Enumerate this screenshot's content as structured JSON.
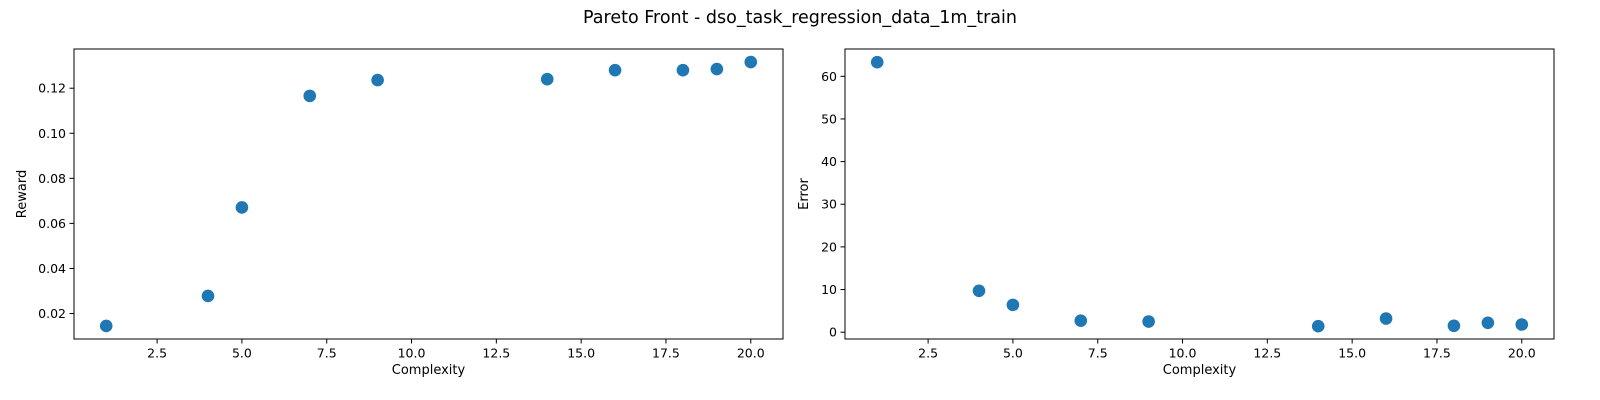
{
  "figure": {
    "suptitle": "Pareto Front - dso_task_regression_data_1m_train"
  },
  "chart_data": [
    {
      "type": "scatter",
      "title": "",
      "xlabel": "Complexity",
      "ylabel": "Reward",
      "xlim": [
        0.05,
        20.95
      ],
      "ylim": [
        0.0087,
        0.1374
      ],
      "xticks": [
        2.5,
        5.0,
        7.5,
        10.0,
        12.5,
        15.0,
        17.5,
        20.0
      ],
      "xtick_labels": [
        "2.5",
        "5.0",
        "7.5",
        "10.0",
        "12.5",
        "15.0",
        "17.5",
        "20.0"
      ],
      "yticks": [
        0.02,
        0.04,
        0.06,
        0.08,
        0.1,
        0.12
      ],
      "ytick_labels": [
        "0.02",
        "0.04",
        "0.06",
        "0.08",
        "0.10",
        "0.12"
      ],
      "grid": false,
      "color": "#1f77b4",
      "x": [
        1,
        4,
        5,
        7,
        9,
        14,
        16,
        18,
        19,
        20
      ],
      "y": [
        0.0145,
        0.0278,
        0.0671,
        0.1166,
        0.1236,
        0.124,
        0.128,
        0.128,
        0.1285,
        0.1316
      ]
    },
    {
      "type": "scatter",
      "title": "",
      "xlabel": "Complexity",
      "ylabel": "Error",
      "xlim": [
        0.05,
        20.95
      ],
      "ylim": [
        -1.6,
        66.4
      ],
      "xticks": [
        2.5,
        5.0,
        7.5,
        10.0,
        12.5,
        15.0,
        17.5,
        20.0
      ],
      "xtick_labels": [
        "2.5",
        "5.0",
        "7.5",
        "10.0",
        "12.5",
        "15.0",
        "17.5",
        "20.0"
      ],
      "yticks": [
        0,
        10,
        20,
        30,
        40,
        50,
        60
      ],
      "ytick_labels": [
        "0",
        "10",
        "20",
        "30",
        "40",
        "50",
        "60"
      ],
      "grid": false,
      "color": "#1f77b4",
      "x": [
        1,
        4,
        5,
        7,
        9,
        14,
        16,
        18,
        19,
        20
      ],
      "y": [
        63.3,
        9.7,
        6.4,
        2.7,
        2.5,
        1.4,
        3.2,
        1.5,
        2.2,
        1.8
      ]
    }
  ]
}
